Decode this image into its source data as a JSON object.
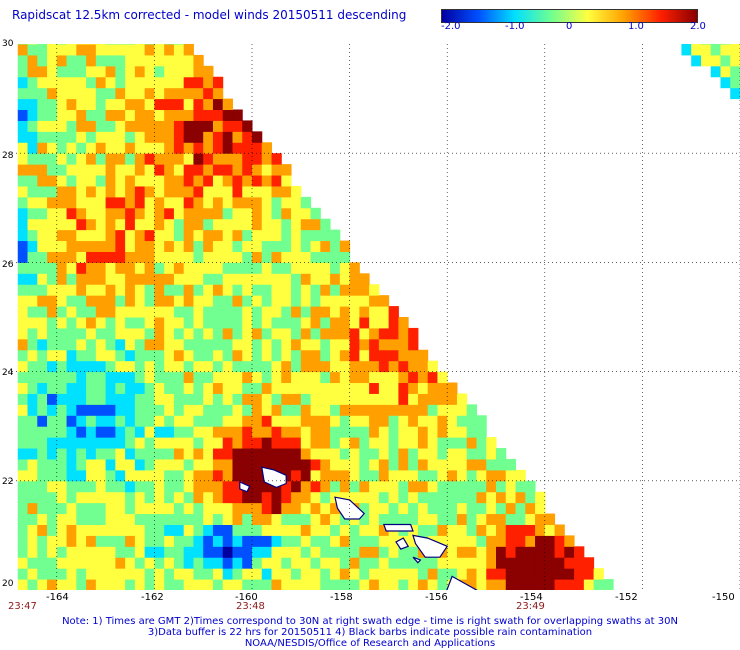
{
  "title": "Rapidscat 12.5km corrected - model winds 20150511 descending",
  "colorbar": {
    "labels": [
      "-2.0",
      "-1.0",
      "0",
      "1.0",
      "2.0"
    ],
    "range": [
      -2.0,
      2.0
    ],
    "colors": [
      "#0000a0",
      "#0050ff",
      "#00e0ff",
      "#70ff90",
      "#ffff40",
      "#ffa000",
      "#ff2000",
      "#8b0000"
    ]
  },
  "lat_labels": [
    "30",
    "28",
    "26",
    "24",
    "22",
    "20"
  ],
  "lon_labels": [
    "-164",
    "-162",
    "-160",
    "-158",
    "-156",
    "-154",
    "-152",
    "-150"
  ],
  "time_labels": [
    "23:47",
    "23:48",
    "23:49"
  ],
  "notes": [
    "Note: 1) Times are GMT 2)Times correspond to 30N at right swath edge - time is right swath for overlapping swaths at 30N",
    "3)Data buffer is 22 hrs for 20150511 4) Black barbs indicate possible rain contamination",
    "NOAA/NESDIS/Office of Research and Applications"
  ],
  "map": {
    "lat_range": [
      20,
      30
    ],
    "lon_range": [
      -165,
      -150
    ],
    "land_outline_color": "#000080"
  }
}
